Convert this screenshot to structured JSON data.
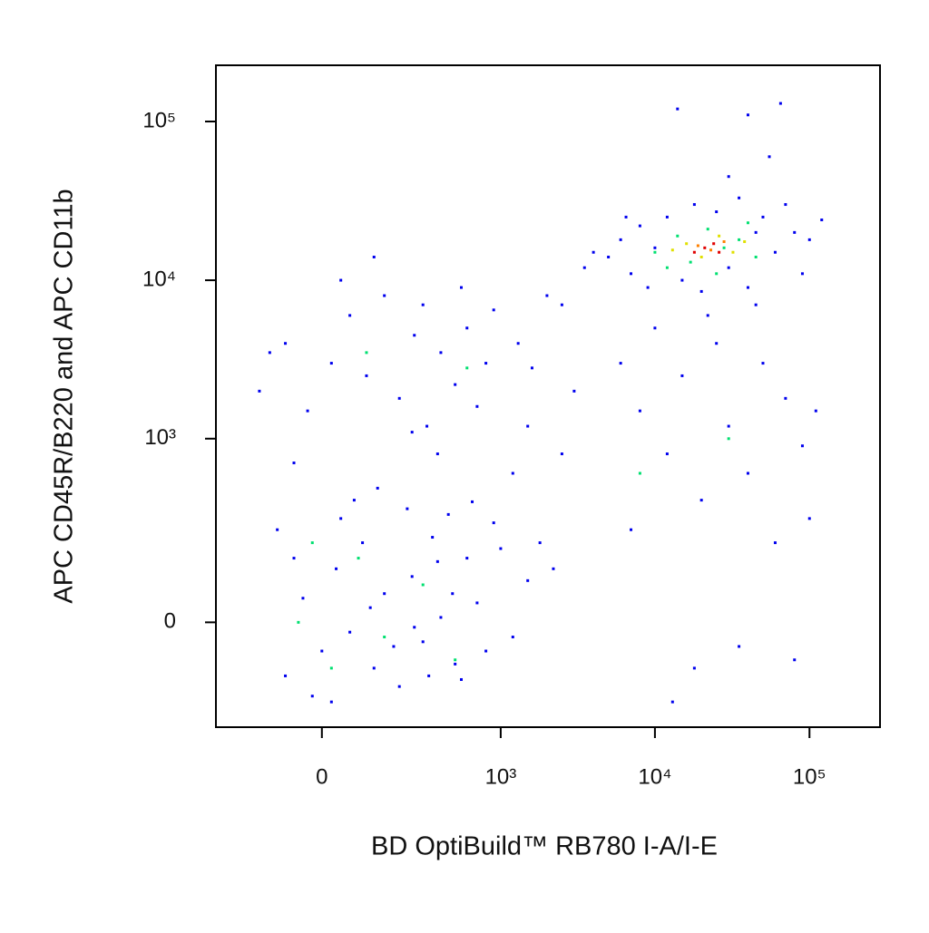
{
  "chart_data": {
    "type": "scatter",
    "xscale": "asinh",
    "yscale": "asinh",
    "x_label": "BD OptiBuild™ RB780 I-A/I-E",
    "y_label": "APC CD45R/B220 and APC CD11b",
    "xlim": [
      -325,
      286000
    ],
    "ylim": [
      -305,
      226000
    ],
    "xticks": [
      0,
      {
        "value": 1000,
        "label": "10³"
      },
      {
        "value": 10000,
        "label": "10⁴"
      },
      {
        "value": 100000,
        "label": "10⁵"
      }
    ],
    "yticks": [
      0,
      {
        "value": 1000,
        "label": "10³"
      },
      {
        "value": 10000,
        "label": "10⁴"
      },
      {
        "value": 100000,
        "label": "10⁵"
      }
    ],
    "series": [
      {
        "color": "#0000ee",
        "x": [
          -80,
          -40,
          0,
          30,
          60,
          90,
          120,
          150,
          200,
          250,
          300,
          350,
          400,
          500,
          600,
          700,
          800,
          1000,
          1200,
          1500,
          -100,
          -20,
          40,
          180,
          450,
          550,
          900,
          1800,
          70,
          -60,
          130,
          260,
          380,
          650,
          2200,
          20,
          110,
          230,
          330,
          480,
          -150,
          -80,
          -30,
          20,
          60,
          100,
          150,
          200,
          260,
          320,
          400,
          500,
          600,
          700,
          800,
          -120,
          40,
          120,
          300,
          550,
          900,
          1300,
          1600,
          2000,
          250,
          -60,
          380,
          1200,
          1500,
          2500,
          3000,
          2500,
          3500,
          5000,
          6000,
          7000,
          8000,
          9000,
          10000,
          12000,
          15000,
          18000,
          20000,
          25000,
          30000,
          35000,
          40000,
          50000,
          60000,
          70000,
          80000,
          100000,
          120000,
          45000,
          14000,
          40000,
          65000,
          30000,
          55000,
          6500,
          90000,
          4000,
          6000,
          8000,
          10000,
          12000,
          15000,
          20000,
          25000,
          30000,
          40000,
          50000,
          60000,
          70000,
          90000,
          100000,
          7000,
          18000,
          35000,
          110000,
          13000,
          80000,
          45000,
          22000
        ],
        "values": [
          -120,
          50,
          -60,
          120,
          -20,
          200,
          -100,
          60,
          -150,
          100,
          -40,
          220,
          10,
          -90,
          150,
          40,
          -60,
          180,
          -30,
          90,
          250,
          -180,
          300,
          -50,
          320,
          -130,
          280,
          200,
          400,
          150,
          480,
          -10,
          140,
          390,
          120,
          -200,
          30,
          350,
          -120,
          60,
          2000,
          4000,
          1500,
          3000,
          6000,
          2500,
          8000,
          1800,
          4500,
          1200,
          3500,
          2200,
          5000,
          1600,
          3000,
          3500,
          10000,
          14000,
          7000,
          9000,
          6500,
          4000,
          2800,
          8000,
          1100,
          700,
          800,
          600,
          1200,
          800,
          2000,
          7000,
          12000,
          14000,
          18000,
          11000,
          22000,
          9000,
          16000,
          25000,
          10000,
          30000,
          8500,
          27000,
          12000,
          33000,
          9000,
          25000,
          15000,
          30000,
          20000,
          18000,
          24000,
          20000,
          120000,
          110000,
          130000,
          45000,
          60000,
          25000,
          11000,
          15000,
          3000,
          1500,
          5000,
          800,
          2500,
          400,
          4000,
          1200,
          600,
          3000,
          200,
          1800,
          900,
          300,
          250,
          -100,
          -50,
          1500,
          -200,
          -80,
          7000,
          6000
        ]
      },
      {
        "color": "#00e070",
        "x": [
          -50,
          20,
          80,
          150,
          300,
          -20,
          500,
          10000,
          14000,
          17000,
          22000,
          28000,
          35000,
          45000,
          12000,
          25000,
          40000,
          600,
          100,
          30000,
          8000
        ],
        "values": [
          0,
          -100,
          150,
          -30,
          80,
          200,
          -80,
          15000,
          19000,
          13000,
          21000,
          16000,
          18000,
          14000,
          12000,
          11000,
          23000,
          2800,
          3500,
          1000,
          600
        ]
      },
      {
        "color": "#e0e000",
        "x": [
          16000,
          20000,
          26000,
          32000,
          13000,
          38000
        ],
        "values": [
          17000,
          14000,
          19000,
          15000,
          15500,
          17500
        ]
      },
      {
        "color": "#ff8000",
        "x": [
          19000,
          23000,
          28000
        ],
        "values": [
          16500,
          15500,
          17500
        ]
      },
      {
        "color": "#e00000",
        "x": [
          21000,
          24000,
          18000,
          26000
        ],
        "values": [
          16000,
          17000,
          15000,
          15000
        ]
      }
    ]
  }
}
